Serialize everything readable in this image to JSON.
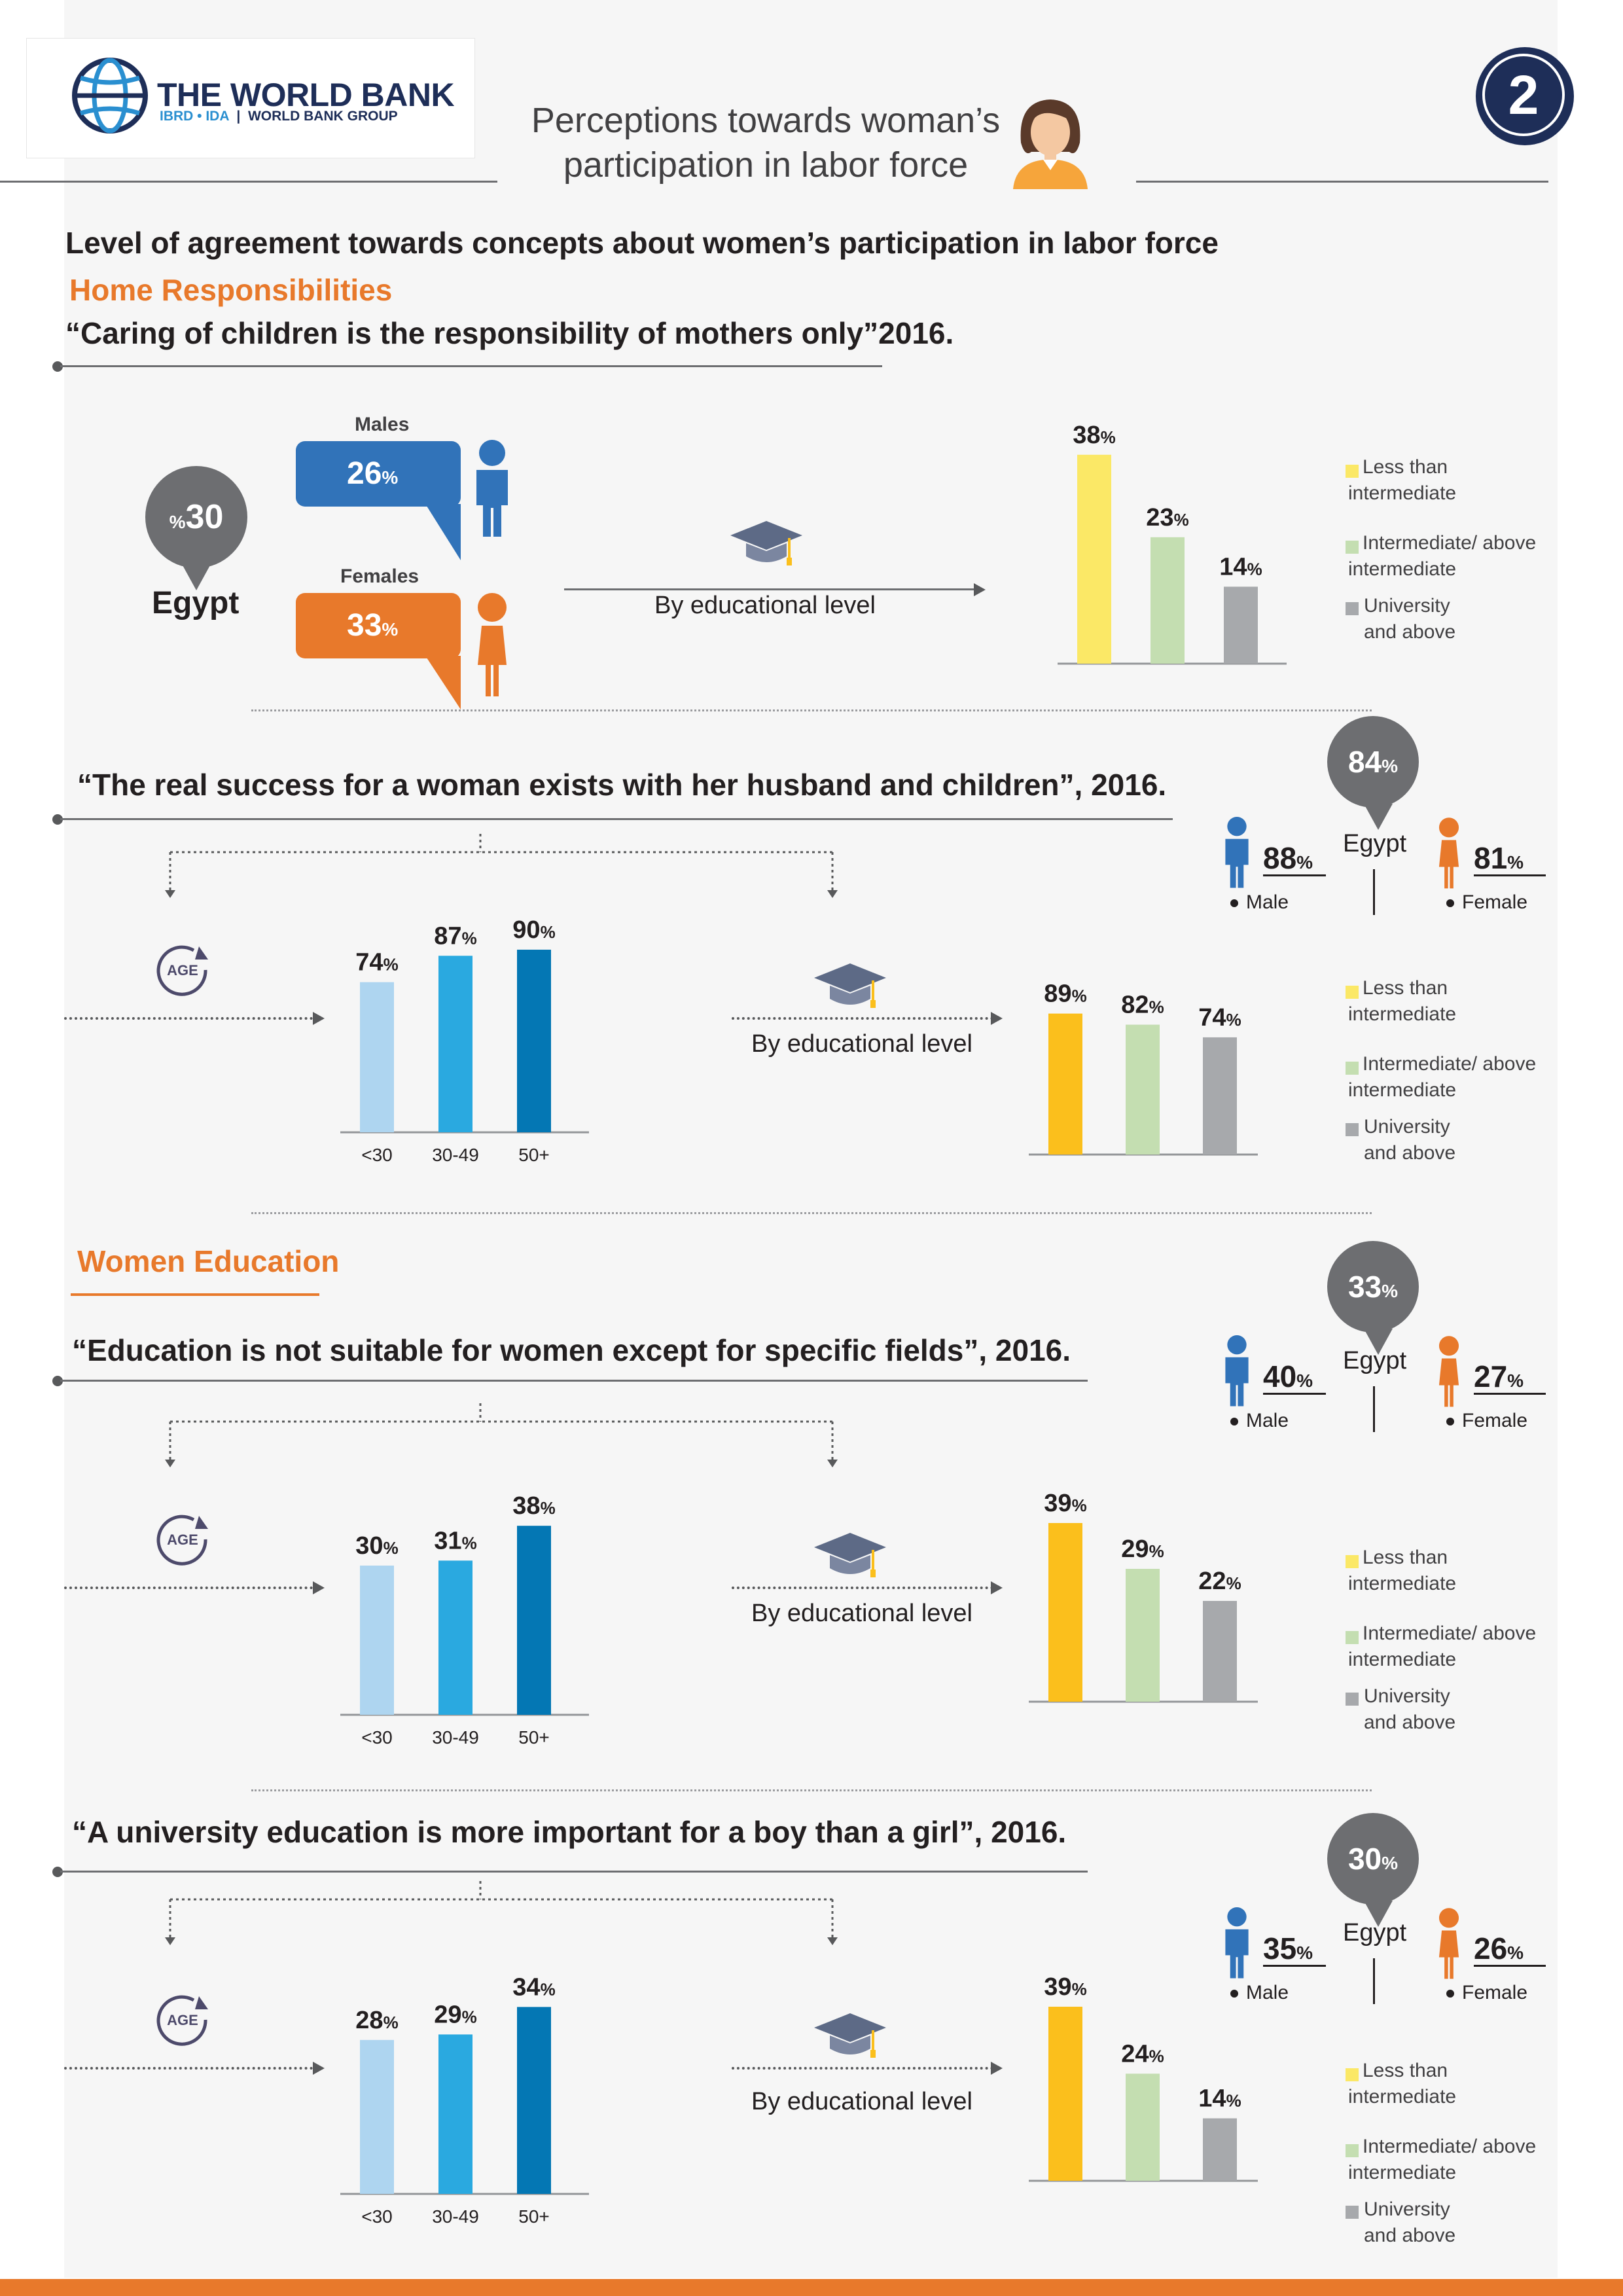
{
  "header": {
    "logo_title": "THE WORLD BANK",
    "logo_sub_a": "IBRD • IDA",
    "logo_sub_b": "WORLD BANK GROUP",
    "title_line1": "Perceptions towards woman’s",
    "title_line2": "participation in labor force",
    "page_number": "2"
  },
  "main_heading": "Level of agreement towards concepts about women’s participation in labor force",
  "sections": {
    "home": "Home Responsibilities",
    "education": "Women Education"
  },
  "common": {
    "egypt": "Egypt",
    "male": "Male",
    "female": "Female",
    "by_edu": "By educational level",
    "age_icon_label": "AGE",
    "legend": [
      "Less than intermediate",
      "Intermediate/ above intermediate",
      "University and above"
    ],
    "legend_line1": [
      "Less than",
      "Intermediate/ above",
      "University"
    ],
    "legend_line2": [
      "intermediate",
      "intermediate",
      "and above"
    ],
    "age_categories": [
      "<30",
      "30-49",
      "50+"
    ],
    "colors": {
      "blue": "#3173b9",
      "orange": "#e8792b",
      "edu_yellow_light": "#fbe866",
      "edu_yellow": "#fbbf1c",
      "edu_green": "#c4deb1",
      "edu_gray": "#a7a9ac",
      "age_light": "#aed5f0",
      "age_mid": "#2aa9e0",
      "age_dark": "#0477b4"
    }
  },
  "q1": {
    "quote": "“Caring of children is the responsibility of mothers only”2016.",
    "egypt_value": "30",
    "egypt_prefix": "%",
    "males_label": "Males",
    "females_label": "Females",
    "male_value": "26",
    "female_value": "33"
  },
  "q2": {
    "quote": "“The real success for a woman exists with her husband and children”, 2016.",
    "egypt_value": "84",
    "male_value": "88",
    "female_value": "81"
  },
  "q3": {
    "quote": "“Education is not suitable for women except for specific fields”, 2016.",
    "egypt_value": "33",
    "male_value": "40",
    "female_value": "27"
  },
  "q4": {
    "quote": "“A university education is more important for a boy than a girl”, 2016.",
    "egypt_value": "30",
    "male_value": "35",
    "female_value": "26"
  },
  "chart_data": [
    {
      "type": "bar",
      "categories": [
        "Less than intermediate",
        "Intermediate/ above intermediate",
        "University and above"
      ],
      "values": [
        38,
        23,
        14
      ]
    },
    {
      "type": "bar",
      "categories": [
        "<30",
        "30-49",
        "50+"
      ],
      "values": [
        74,
        87,
        90
      ]
    },
    {
      "type": "bar",
      "categories": [
        "Less than intermediate",
        "Intermediate/ above intermediate",
        "University and above"
      ],
      "values": [
        89,
        82,
        74
      ]
    },
    {
      "type": "bar",
      "categories": [
        "<30",
        "30-49",
        "50+"
      ],
      "values": [
        30,
        31,
        38
      ]
    },
    {
      "type": "bar",
      "categories": [
        "Less than intermediate",
        "Intermediate/ above intermediate",
        "University and above"
      ],
      "values": [
        39,
        29,
        22
      ]
    },
    {
      "type": "bar",
      "categories": [
        "<30",
        "30-49",
        "50+"
      ],
      "values": [
        28,
        29,
        34
      ]
    },
    {
      "type": "bar",
      "categories": [
        "Less than intermediate",
        "Intermediate/ above intermediate",
        "University and above"
      ],
      "values": [
        39,
        24,
        14
      ]
    }
  ]
}
